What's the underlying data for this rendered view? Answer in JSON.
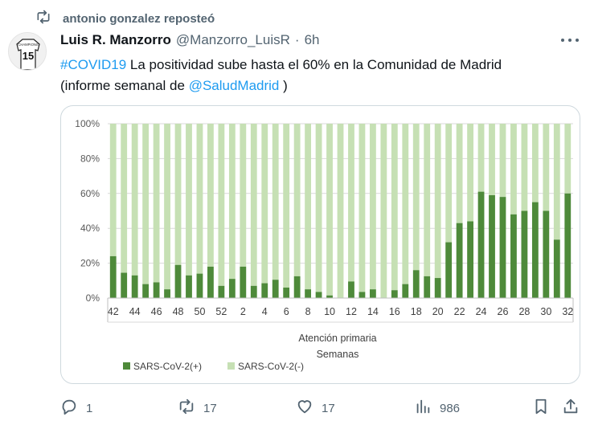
{
  "repost": {
    "text": "antonio gonzalez reposteó",
    "icon": "repost-icon"
  },
  "author": {
    "name": "Luis R. Manzorro",
    "handle": "@Manzorro_LuisR",
    "separator": "·",
    "time": "6h",
    "avatar_jersey_text": "CHAMPIONS",
    "avatar_number": "15"
  },
  "tweet": {
    "hashtag": "#COVID19",
    "text_1": " La positividad sube hasta el 60% en la Comunidad de Madrid",
    "text_2": "(informe semanal de ",
    "mention": "@SaludMadrid",
    "text_3": " )"
  },
  "colors": {
    "link": "#1d9bf0",
    "positive": "#4e8a3a",
    "negative": "#c6e0b4"
  },
  "chart_data": {
    "type": "bar",
    "stacked": true,
    "percent": true,
    "categories": [
      "42",
      "43",
      "44",
      "45",
      "46",
      "47",
      "48",
      "49",
      "50",
      "51",
      "52",
      "1",
      "2",
      "3",
      "4",
      "5",
      "6",
      "7",
      "8",
      "9",
      "10",
      "11",
      "12",
      "13",
      "14",
      "15",
      "16",
      "17",
      "18",
      "19",
      "20",
      "21",
      "22",
      "23",
      "24",
      "25",
      "26",
      "27",
      "28",
      "29",
      "30",
      "31",
      "32"
    ],
    "series": [
      {
        "name": "SARS-CoV-2(+)",
        "color": "#4e8a3a",
        "values": [
          24,
          14.5,
          13,
          8,
          9,
          5,
          19,
          13,
          14,
          18,
          7,
          11,
          18,
          7,
          8.5,
          10.5,
          6,
          12.5,
          5,
          3.5,
          1.5,
          0,
          9.5,
          3.5,
          5,
          0,
          4.5,
          8,
          16,
          12.5,
          11.5,
          32,
          43,
          44,
          61,
          59,
          58,
          48,
          50,
          55,
          50,
          33.5,
          60
        ]
      },
      {
        "name": "SARS-CoV-2(-)",
        "color": "#c6e0b4",
        "values": [
          76,
          85.5,
          87,
          92,
          91,
          95,
          81,
          87,
          86,
          82,
          93,
          89,
          82,
          93,
          91.5,
          89.5,
          94,
          87.5,
          95,
          96.5,
          98.5,
          100,
          90.5,
          96.5,
          95,
          100,
          95.5,
          92,
          84,
          87.5,
          88.5,
          68,
          57,
          56,
          39,
          41,
          42,
          52,
          50,
          45,
          50,
          66.5,
          40
        ]
      }
    ],
    "tick_labels": [
      "42",
      "44",
      "46",
      "48",
      "50",
      "52",
      "2",
      "4",
      "6",
      "8",
      "10",
      "12",
      "14",
      "16",
      "18",
      "20",
      "22",
      "24",
      "26",
      "28",
      "30",
      "32"
    ],
    "yticks": [
      "0%",
      "20%",
      "40%",
      "60%",
      "80%",
      "100%"
    ],
    "ylim": [
      0,
      100
    ],
    "xlabel_1": "Atención primaria",
    "xlabel_2": "Semanas",
    "legend_placement": "bottom-left"
  },
  "actions": {
    "reply": {
      "icon": "reply-icon",
      "count": "1"
    },
    "repost": {
      "icon": "repost-icon",
      "count": "17"
    },
    "like": {
      "icon": "heart-icon",
      "count": "17"
    },
    "views": {
      "icon": "views-icon",
      "count": "986"
    },
    "bookmark": {
      "icon": "bookmark-icon"
    },
    "share": {
      "icon": "share-icon"
    }
  }
}
